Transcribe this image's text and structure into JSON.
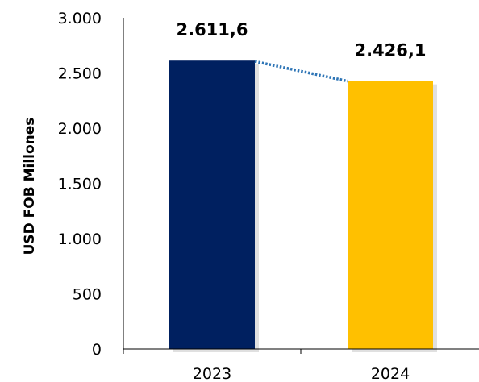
{
  "chart_data": {
    "type": "bar",
    "categories": [
      "2023",
      "2024"
    ],
    "values": [
      2611.6,
      2426.1
    ],
    "value_labels": [
      "2.611,6",
      "2.426,1"
    ],
    "ylabel": "USD FOB Millones",
    "xlabel": "",
    "ylim": [
      0,
      3000
    ],
    "yticks": [
      0,
      500,
      1000,
      1500,
      2000,
      2500,
      3000
    ],
    "ytick_labels": [
      "0",
      "500",
      "1.000",
      "1.500",
      "2.000",
      "2.500",
      "3.000"
    ],
    "bar_colors": [
      "#002060",
      "#FFC000"
    ],
    "connector": {
      "style": "dotted",
      "color": "#2E75B6"
    },
    "grid": false,
    "legend": "none"
  }
}
